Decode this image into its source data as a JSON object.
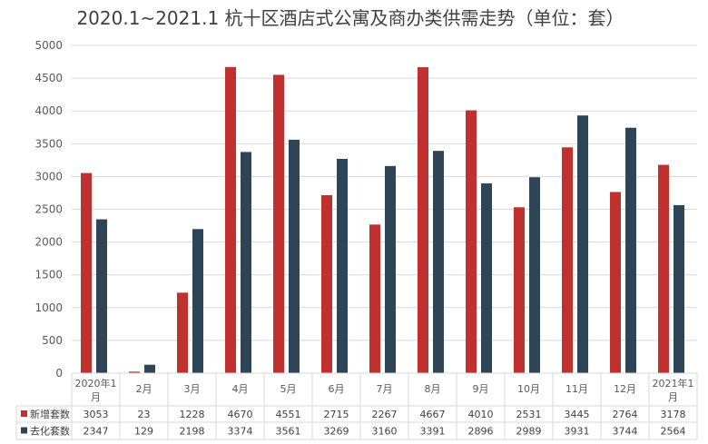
{
  "chart_data": {
    "type": "bar",
    "title": "2020.1~2021.1 杭十区酒店式公寓及商办类供需走势（单位：套）",
    "categories": [
      "2020年1月",
      "2月",
      "3月",
      "4月",
      "5月",
      "6月",
      "7月",
      "8月",
      "9月",
      "10月",
      "11月",
      "12月",
      "2021年1月"
    ],
    "series": [
      {
        "name": "新增套数",
        "color": "#c0302f",
        "values": [
          3053,
          23,
          1228,
          4670,
          4551,
          2715,
          2267,
          4667,
          4010,
          2531,
          3445,
          2764,
          3178
        ]
      },
      {
        "name": "去化套数",
        "color": "#2e4557",
        "values": [
          2347,
          129,
          2198,
          3374,
          3561,
          3269,
          3160,
          3391,
          2896,
          2989,
          3931,
          3744,
          2564
        ]
      }
    ],
    "ylim": [
      0,
      5000
    ],
    "yticks": [
      0,
      500,
      1000,
      1500,
      2000,
      2500,
      3000,
      3500,
      4000,
      4500,
      5000
    ],
    "grid": true,
    "legend": "data-table"
  }
}
